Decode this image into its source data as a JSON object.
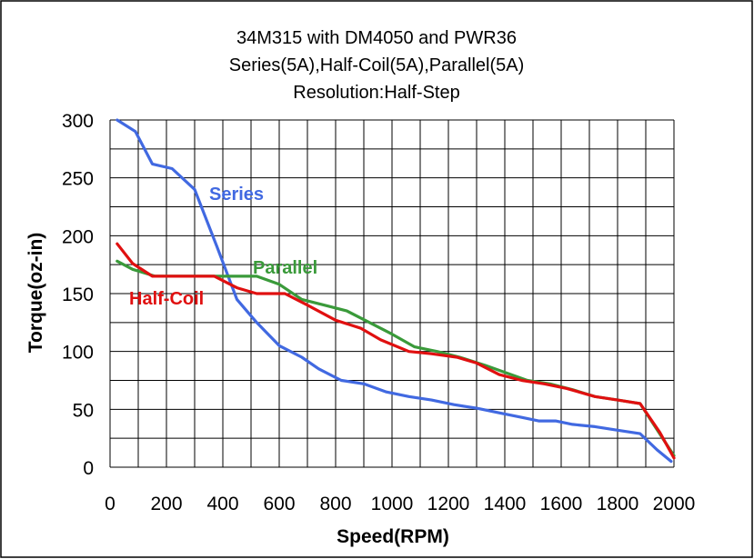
{
  "chart_data": {
    "type": "line",
    "title": "34M315 with DM4050 and PWR36",
    "subtitle": "Series(5A),Half-Coil(5A),Parallel(5A)",
    "subtitle2": "Resolution:Half-Step",
    "xlabel": "Speed(RPM)",
    "ylabel": "Torque(oz-in)",
    "xlim": [
      0,
      2000
    ],
    "ylim": [
      0,
      300
    ],
    "xticks": [
      0,
      200,
      400,
      600,
      800,
      1000,
      1200,
      1400,
      1600,
      1800,
      2000
    ],
    "yticks": [
      0,
      50,
      100,
      150,
      200,
      250,
      300
    ],
    "grid": true,
    "legend": "inline labels",
    "series": [
      {
        "name": "Series",
        "color": "#4169e1",
        "points": [
          [
            25,
            300
          ],
          [
            90,
            290
          ],
          [
            150,
            262
          ],
          [
            220,
            258
          ],
          [
            300,
            240
          ],
          [
            380,
            190
          ],
          [
            450,
            145
          ],
          [
            520,
            125
          ],
          [
            600,
            105
          ],
          [
            680,
            95
          ],
          [
            740,
            85
          ],
          [
            820,
            75
          ],
          [
            900,
            72
          ],
          [
            980,
            65
          ],
          [
            1060,
            61
          ],
          [
            1140,
            58
          ],
          [
            1220,
            54
          ],
          [
            1300,
            51
          ],
          [
            1380,
            47
          ],
          [
            1460,
            43
          ],
          [
            1520,
            40
          ],
          [
            1580,
            40
          ],
          [
            1640,
            37
          ],
          [
            1720,
            35
          ],
          [
            1800,
            32
          ],
          [
            1880,
            29
          ],
          [
            1940,
            15
          ],
          [
            1990,
            5
          ]
        ]
      },
      {
        "name": "Parallel",
        "color": "#3a9a3a",
        "points": [
          [
            25,
            178
          ],
          [
            80,
            171
          ],
          [
            120,
            168
          ],
          [
            160,
            165
          ],
          [
            300,
            165
          ],
          [
            360,
            165
          ],
          [
            440,
            165
          ],
          [
            520,
            165
          ],
          [
            600,
            158
          ],
          [
            680,
            145
          ],
          [
            760,
            140
          ],
          [
            840,
            135
          ],
          [
            920,
            125
          ],
          [
            1000,
            115
          ],
          [
            1080,
            104
          ],
          [
            1160,
            100
          ],
          [
            1240,
            95
          ],
          [
            1330,
            88
          ],
          [
            1400,
            82
          ],
          [
            1480,
            75
          ],
          [
            1560,
            72
          ],
          [
            1640,
            67
          ],
          [
            1720,
            61
          ],
          [
            1800,
            58
          ],
          [
            1880,
            55
          ],
          [
            1960,
            25
          ],
          [
            2000,
            10
          ]
        ]
      },
      {
        "name": "Half-Coil",
        "color": "#e01010",
        "points": [
          [
            25,
            193
          ],
          [
            80,
            176
          ],
          [
            150,
            165
          ],
          [
            240,
            165
          ],
          [
            300,
            165
          ],
          [
            370,
            165
          ],
          [
            450,
            155
          ],
          [
            520,
            150
          ],
          [
            620,
            150
          ],
          [
            700,
            140
          ],
          [
            800,
            127
          ],
          [
            890,
            120
          ],
          [
            960,
            110
          ],
          [
            1060,
            100
          ],
          [
            1140,
            98
          ],
          [
            1230,
            95
          ],
          [
            1300,
            90
          ],
          [
            1380,
            80
          ],
          [
            1460,
            75
          ],
          [
            1540,
            72
          ],
          [
            1620,
            68
          ],
          [
            1720,
            61
          ],
          [
            1800,
            58
          ],
          [
            1880,
            55
          ],
          [
            1950,
            30
          ],
          [
            2000,
            8
          ]
        ]
      }
    ]
  }
}
